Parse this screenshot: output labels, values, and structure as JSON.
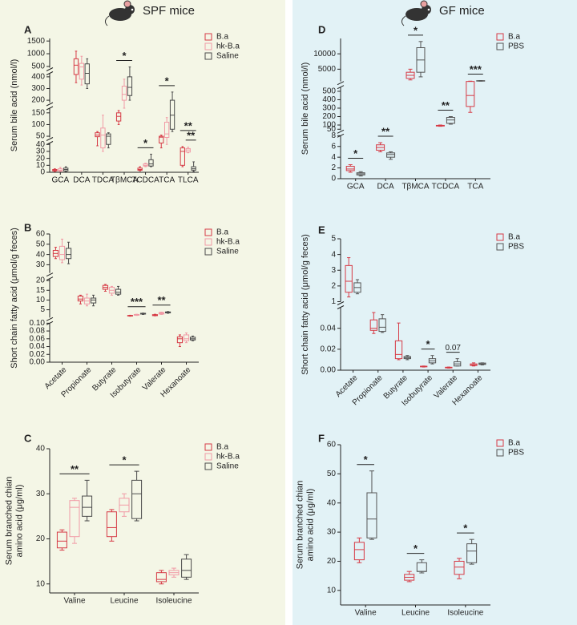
{
  "chart_data": [
    {
      "type": "box",
      "panel": "A",
      "group_title": "SPF mice",
      "ylabel": "Serum bile acid (nmol/l)",
      "legend": "upper right",
      "categories": [
        "GCA",
        "DCA",
        "TDCA",
        "TβMCA",
        "TCDCA",
        "TCA",
        "TLCA"
      ],
      "ysegments": [
        {
          "ylim": [
            0,
            42
          ],
          "yticks": [
            0,
            10,
            20,
            30,
            40
          ]
        },
        {
          "ylim": [
            45,
            170
          ],
          "yticks": [
            50,
            100,
            150
          ]
        },
        {
          "ylim": [
            180,
            430
          ],
          "yticks": [
            200,
            300,
            400
          ]
        },
        {
          "ylim": [
            450,
            1600
          ],
          "yticks": [
            500,
            1000,
            1500
          ]
        }
      ],
      "series": [
        {
          "name": "B.a",
          "color": "#d63a45",
          "boxes": [
            [
              1,
              2,
              3,
              4,
              5
            ],
            [
              350,
              420,
              550,
              800,
              1100
            ],
            [
              38,
              48,
              55,
              65,
              70
            ],
            [
              100,
              115,
              135,
              150,
              160
            ],
            [
              2,
              3,
              4,
              6,
              8
            ],
            [
              35,
              42,
              46,
              50,
              55
            ],
            [
              8,
              10,
              30,
              35,
              37
            ]
          ]
        },
        {
          "name": "hk-B.a",
          "color": "#f19aa5",
          "boxes": [
            [
              1,
              2,
              3,
              5,
              7
            ],
            [
              330,
              380,
              480,
              620,
              900
            ],
            [
              30,
              35,
              55,
              85,
              140
            ],
            [
              170,
              200,
              250,
              320,
              380
            ],
            [
              8,
              9,
              10,
              12,
              13
            ],
            [
              40,
              45,
              60,
              110,
              130
            ],
            [
              28,
              29,
              32,
              34,
              36
            ]
          ]
        },
        {
          "name": "Saline",
          "color": "#4a4a4a",
          "boxes": [
            [
              1,
              2,
              4,
              6,
              8
            ],
            [
              300,
              340,
              430,
              600,
              800
            ],
            [
              35,
              40,
              50,
              60,
              65
            ],
            [
              200,
              240,
              310,
              400,
              480
            ],
            [
              8,
              9,
              12,
              18,
              26
            ],
            [
              70,
              80,
              140,
              200,
              270
            ],
            [
              1,
              3,
              5,
              8,
              15
            ]
          ]
        }
      ],
      "annotations": [
        {
          "text": "*",
          "category": 3,
          "between": [
            0,
            2
          ]
        },
        {
          "text": "*",
          "category": 4,
          "between": [
            0,
            2
          ]
        },
        {
          "text": "*",
          "category": 5,
          "between": [
            0,
            2
          ]
        },
        {
          "text": "**",
          "category": 6,
          "between": [
            1,
            2
          ]
        },
        {
          "text": "**",
          "category": 6,
          "between": [
            0,
            2
          ]
        }
      ]
    },
    {
      "type": "box",
      "panel": "B",
      "ylabel": "Short chain fatty acid (μmol/g feces)",
      "legend": "upper right",
      "xtick_rotation": -45,
      "categories": [
        "Acetate",
        "Propionate",
        "Butyrate",
        "Isobutyrate",
        "Valerate",
        "Hexanoate"
      ],
      "ysegments": [
        {
          "ylim": [
            0,
            0.1
          ],
          "yticks": [
            {
              "value": 0,
              "label": "0.00"
            },
            0.02,
            0.04,
            0.06,
            0.08,
            {
              "value": 0.1,
              "label": "0.10"
            }
          ]
        },
        {
          "ylim": [
            1,
            21
          ],
          "yticks": [
            5,
            10,
            15,
            20
          ]
        },
        {
          "ylim": [
            22,
            60
          ],
          "yticks": [
            30,
            40,
            50,
            60
          ]
        }
      ],
      "series": [
        {
          "name": "B.a",
          "color": "#d63a45",
          "boxes": [
            [
              36,
              38,
              41,
              44,
              47
            ],
            [
              8,
              9.5,
              10.5,
              12,
              12.5
            ],
            [
              14.5,
              15.5,
              16.5,
              17.5,
              18
            ],
            [
              1.7,
              1.8,
              2,
              2.1,
              2.2
            ],
            [
              1.9,
              2,
              2.2,
              2.5,
              2.7
            ],
            [
              0.04,
              0.05,
              0.06,
              0.065,
              0.07
            ]
          ]
        },
        {
          "name": "hk-B.a",
          "color": "#f19aa5",
          "boxes": [
            [
              32,
              35,
              40,
              48,
              55
            ],
            [
              7,
              8,
              9.5,
              11,
              13
            ],
            [
              12.5,
              13.5,
              15,
              16.5,
              17
            ],
            [
              2.1,
              2.2,
              2.4,
              2.6,
              2.7
            ],
            [
              2.6,
              2.8,
              3.2,
              3.6,
              3.8
            ],
            [
              0.05,
              0.055,
              0.06,
              0.07,
              0.075
            ]
          ]
        },
        {
          "name": "Saline",
          "color": "#4a4a4a",
          "boxes": [
            [
              31,
              36,
              40,
              46,
              52
            ],
            [
              7,
              8.5,
              10,
              11,
              12.5
            ],
            [
              12.5,
              13,
              14,
              15.5,
              17
            ],
            [
              2.6,
              2.8,
              3,
              3.2,
              3.3
            ],
            [
              3.2,
              3.4,
              3.6,
              3.9,
              4.1
            ],
            [
              0.055,
              0.057,
              0.06,
              0.064,
              0.067
            ]
          ]
        }
      ],
      "annotations": [
        {
          "text": "***",
          "category": 3,
          "between": [
            0,
            2
          ]
        },
        {
          "text": "**",
          "category": 4,
          "between": [
            0,
            2
          ]
        }
      ]
    },
    {
      "type": "box",
      "panel": "C",
      "ylabel": [
        "Serum branched chian",
        "amino acid (μg/ml)"
      ],
      "legend": "upper right",
      "categories": [
        "Valine",
        "Leucine",
        "Isoleucine"
      ],
      "ylim": [
        8,
        40
      ],
      "yticks": [
        10,
        20,
        30,
        40
      ],
      "series": [
        {
          "name": "B.a",
          "color": "#d63a45",
          "boxes": [
            [
              17.5,
              18,
              19.5,
              21.5,
              22
            ],
            [
              19.5,
              20.5,
              22.5,
              26,
              26.5
            ],
            [
              10,
              10.5,
              11,
              12.5,
              13
            ]
          ]
        },
        {
          "name": "hk-B.a",
          "color": "#f19aa5",
          "boxes": [
            [
              19,
              20.5,
              27,
              28.5,
              29
            ],
            [
              25,
              26,
              27.5,
              29,
              30
            ],
            [
              11.5,
              12,
              12.5,
              13,
              13.5
            ]
          ]
        },
        {
          "name": "Saline",
          "color": "#4a4a4a",
          "boxes": [
            [
              24,
              25,
              27,
              29.5,
              33
            ],
            [
              24,
              24.5,
              30,
              33,
              35
            ],
            [
              11,
              11.5,
              13,
              15.5,
              16.5
            ]
          ]
        }
      ],
      "annotations": [
        {
          "text": "**",
          "category": 0,
          "between": [
            0,
            2
          ]
        },
        {
          "text": "*",
          "category": 1,
          "between": [
            0,
            2
          ]
        }
      ]
    },
    {
      "type": "box",
      "panel": "D",
      "group_title": "GF mice",
      "ylabel": "Serum bile acid (nmol/l)",
      "legend": "upper right",
      "categories": [
        "GCA",
        "DCA",
        "TβMCA",
        "TCDCA",
        "TCA"
      ],
      "ysegments": [
        {
          "ylim": [
            0,
            8
          ],
          "yticks": [
            0,
            2,
            4,
            6,
            8
          ]
        },
        {
          "ylim": [
            40,
            550
          ],
          "yticks": [
            50,
            100,
            200,
            300,
            400,
            500
          ]
        },
        {
          "ylim": [
            1000,
            15000
          ],
          "yticks": [
            5000,
            10000
          ]
        }
      ],
      "series": [
        {
          "name": "B.a",
          "color": "#d63a45",
          "boxes": [
            [
              1.2,
              1.5,
              1.8,
              2.3,
              2.6
            ],
            [
              5,
              5.3,
              5.8,
              6.3,
              6.7
            ],
            [
              1500,
              2000,
              3000,
              4000,
              5000
            ],
            [
              85,
              88,
              92,
              96,
              100
            ],
            [
              250,
              320,
              450,
              1000,
              1100
            ]
          ]
        },
        {
          "name": "PBS",
          "color": "#555555",
          "boxes": [
            [
              0.5,
              0.7,
              0.9,
              1.1,
              1.3
            ],
            [
              3.6,
              4,
              4.5,
              4.8,
              5
            ],
            [
              2500,
              4000,
              8000,
              12000,
              14000
            ],
            [
              110,
              120,
              160,
              190,
              200
            ],
            [
              1100,
              1150,
              1200,
              1250,
              1300
            ]
          ]
        }
      ],
      "annotations": [
        {
          "text": "*",
          "category": 0,
          "between": [
            0,
            1
          ]
        },
        {
          "text": "**",
          "category": 1,
          "between": [
            0,
            1
          ]
        },
        {
          "text": "*",
          "category": 2,
          "between": [
            0,
            1
          ]
        },
        {
          "text": "**",
          "category": 3,
          "between": [
            0,
            1
          ]
        },
        {
          "text": "***",
          "category": 4,
          "between": [
            0,
            1
          ]
        }
      ]
    },
    {
      "type": "box",
      "panel": "E",
      "ylabel": "Short chain fatty acid (μmol/g feces)",
      "legend": "upper right",
      "xtick_rotation": -45,
      "categories": [
        "Acetate",
        "Propionate",
        "Butyrate",
        "Isobutyrate",
        "Valerate",
        "Hexanoate"
      ],
      "ysegments": [
        {
          "ylim": [
            0,
            0.06
          ],
          "yticks": [
            {
              "value": 0,
              "label": "0.00"
            },
            0.02,
            0.04
          ]
        },
        {
          "ylim": [
            1,
            5
          ],
          "yticks": [
            1,
            2,
            3,
            4,
            5
          ]
        }
      ],
      "series": [
        {
          "name": "B.a",
          "color": "#d63a45",
          "boxes": [
            [
              1.3,
              1.6,
              2.3,
              3.3,
              3.8
            ],
            [
              0.035,
              0.038,
              0.04,
              0.048,
              0.055
            ],
            [
              0.01,
              0.011,
              0.015,
              0.028,
              0.045
            ],
            [
              0.003,
              0.0032,
              0.0035,
              0.0038,
              0.004
            ],
            [
              0.002,
              0.0022,
              0.0025,
              0.0028,
              0.003
            ],
            [
              0.004,
              0.0045,
              0.005,
              0.006,
              0.007
            ]
          ]
        },
        {
          "name": "PBS",
          "color": "#555555",
          "boxes": [
            [
              1.5,
              1.6,
              1.9,
              2.2,
              2.4
            ],
            [
              0.036,
              0.037,
              0.041,
              0.049,
              0.053
            ],
            [
              0.01,
              0.011,
              0.012,
              0.013,
              0.014
            ],
            [
              0.006,
              0.007,
              0.009,
              0.011,
              0.014
            ],
            [
              0.004,
              0.004,
              0.006,
              0.008,
              0.011
            ],
            [
              0.005,
              0.0055,
              0.006,
              0.0068,
              0.007
            ]
          ]
        }
      ],
      "annotations": [
        {
          "text": "*",
          "category": 3,
          "between": [
            0,
            1
          ]
        },
        {
          "text": "0.07",
          "category": 4,
          "between": [
            0,
            1
          ]
        }
      ]
    },
    {
      "type": "box",
      "panel": "F",
      "ylabel": [
        "Serum branched chian",
        "amino acid (μg/ml)"
      ],
      "legend": "upper right",
      "categories": [
        "Valine",
        "Leucine",
        "Isoleucine"
      ],
      "ylim": [
        5,
        60
      ],
      "yticks": [
        10,
        20,
        30,
        40,
        50,
        60
      ],
      "series": [
        {
          "name": "B.a",
          "color": "#d63a45",
          "boxes": [
            [
              19.5,
              20.5,
              24,
              26.5,
              28
            ],
            [
              13,
              13.5,
              14.5,
              15.5,
              16.5
            ],
            [
              14,
              15.5,
              18,
              20,
              21
            ]
          ]
        },
        {
          "name": "PBS",
          "color": "#555555",
          "boxes": [
            [
              27.5,
              28,
              34.5,
              43.5,
              51
            ],
            [
              16,
              16.5,
              16.5,
              19.5,
              20.5
            ],
            [
              19,
              19.5,
              23.5,
              26,
              27.5
            ]
          ]
        }
      ],
      "annotations": [
        {
          "text": "*",
          "category": 0,
          "between": [
            0,
            1
          ]
        },
        {
          "text": "*",
          "category": 1,
          "between": [
            0,
            1
          ]
        },
        {
          "text": "*",
          "category": 2,
          "between": [
            0,
            1
          ]
        }
      ]
    }
  ]
}
